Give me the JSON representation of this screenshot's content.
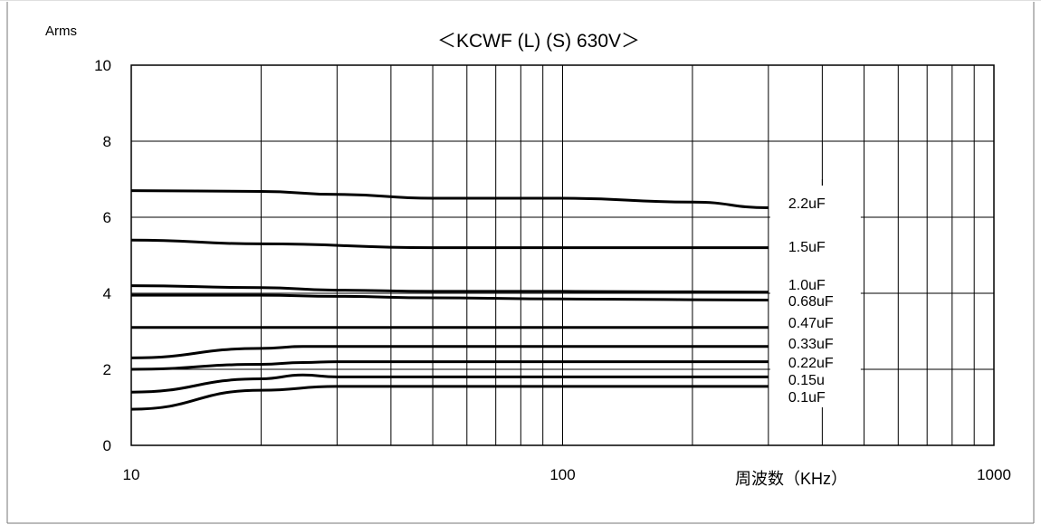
{
  "chart_data": {
    "type": "line",
    "title": "＜KCWF (L) (S) 630V＞",
    "ylabel": "Arms",
    "xlabel": "周波数（KHz）",
    "x_scale": "log",
    "xlim": [
      10,
      1000
    ],
    "ylim": [
      0,
      10
    ],
    "grid": true,
    "x_ticks": [
      "10",
      "100",
      "1000"
    ],
    "y_ticks": [
      "0",
      "2",
      "4",
      "6",
      "8",
      "10"
    ],
    "series": [
      {
        "name": "2.2uF",
        "x": [
          10,
          20,
          30,
          50,
          100,
          200,
          300
        ],
        "y": [
          6.7,
          6.68,
          6.6,
          6.5,
          6.5,
          6.4,
          6.25
        ]
      },
      {
        "name": "1.5uF",
        "x": [
          10,
          20,
          50,
          100,
          300
        ],
        "y": [
          5.4,
          5.3,
          5.2,
          5.2,
          5.2
        ]
      },
      {
        "name": "1.0uF",
        "x": [
          10,
          20,
          30,
          50,
          100,
          300
        ],
        "y": [
          4.2,
          4.15,
          4.08,
          4.05,
          4.05,
          4.03
        ]
      },
      {
        "name": "0.68uF",
        "x": [
          10,
          20,
          30,
          50,
          100,
          300
        ],
        "y": [
          3.95,
          3.95,
          3.92,
          3.88,
          3.85,
          3.82
        ]
      },
      {
        "name": "0.47uF",
        "x": [
          10,
          20,
          50,
          100,
          300
        ],
        "y": [
          3.1,
          3.1,
          3.1,
          3.1,
          3.1
        ]
      },
      {
        "name": "0.33uF",
        "x": [
          10,
          20,
          25,
          30,
          50,
          100,
          300
        ],
        "y": [
          2.3,
          2.55,
          2.6,
          2.6,
          2.6,
          2.6,
          2.6
        ]
      },
      {
        "name": "0.22uF",
        "x": [
          10,
          20,
          25,
          30,
          50,
          100,
          300
        ],
        "y": [
          2.0,
          2.13,
          2.18,
          2.2,
          2.2,
          2.2,
          2.2
        ]
      },
      {
        "name": "0.15u",
        "x": [
          10,
          20,
          25,
          30,
          50,
          100,
          300
        ],
        "y": [
          1.4,
          1.75,
          1.85,
          1.8,
          1.8,
          1.8,
          1.8
        ]
      },
      {
        "name": "0.1uF",
        "x": [
          10,
          20,
          30,
          50,
          100,
          300
        ],
        "y": [
          0.95,
          1.45,
          1.55,
          1.55,
          1.55,
          1.55
        ]
      }
    ]
  }
}
